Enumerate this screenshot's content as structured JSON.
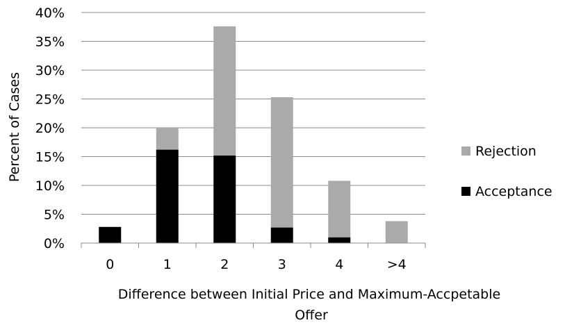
{
  "chart_data": {
    "type": "bar",
    "stacked": true,
    "categories": [
      "0",
      "1",
      "2",
      "3",
      "4",
      ">4"
    ],
    "series": [
      {
        "name": "Acceptance",
        "color": "#000000",
        "values": [
          2.8,
          16.2,
          15.2,
          2.7,
          1.0,
          0.0
        ]
      },
      {
        "name": "Rejection",
        "color": "#AAAAAA",
        "values": [
          0.0,
          3.8,
          22.4,
          22.6,
          9.8,
          3.8
        ]
      }
    ],
    "title": "",
    "xlabel_lines": [
      "Difference between Initial Price and Maximum-Accpetable",
      "Offer"
    ],
    "ylabel": "Percent of Cases",
    "ylim": [
      0,
      40
    ],
    "yticks": [
      "0%",
      "5%",
      "10%",
      "15%",
      "20%",
      "25%",
      "30%",
      "35%",
      "40%"
    ],
    "grid": true,
    "legend_position": "right",
    "legend_order": [
      "Rejection",
      "Acceptance"
    ]
  }
}
